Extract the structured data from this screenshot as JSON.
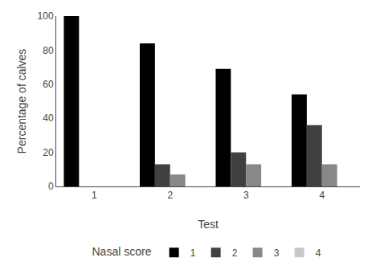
{
  "chart_data": {
    "type": "bar",
    "x": [
      1,
      2,
      3,
      4
    ],
    "series": [
      {
        "name": "1",
        "color": "#000000",
        "values": [
          100,
          84,
          69,
          54
        ]
      },
      {
        "name": "2",
        "color": "#404040",
        "values": [
          0,
          13,
          20,
          36
        ]
      },
      {
        "name": "3",
        "color": "#888888",
        "values": [
          0,
          7,
          13,
          13
        ]
      },
      {
        "name": "4",
        "color": "#c8c8c8",
        "values": [
          0,
          0,
          0,
          0
        ]
      }
    ],
    "xlabel": "Test",
    "ylabel": "Percentage of calves",
    "xlim": [
      0.5,
      4.5
    ],
    "xticks": [
      1,
      2,
      3,
      4
    ],
    "ylim": [
      0,
      100
    ],
    "yticks": [
      0,
      20,
      40,
      60,
      80,
      100
    ],
    "legend": "bottom",
    "legend_title": "Nasal score",
    "grid": false
  }
}
